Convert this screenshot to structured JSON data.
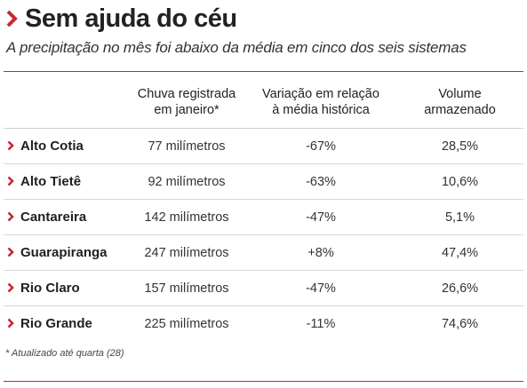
{
  "title": "Sem ajuda do céu",
  "subtitle": "A precipitação no mês foi abaixo da média em cinco dos seis sistemas",
  "accent_color": "#c7282e",
  "chart_data": {
    "type": "table",
    "columns": [
      "",
      "Chuva registrada em janeiro*",
      "Variação em relação à média histórica",
      "Volume armazenado"
    ],
    "rows": [
      {
        "sistema": "Alto Cotia",
        "chuva": "77 milímetros",
        "variacao": "-67%",
        "volume": "28,5%"
      },
      {
        "sistema": "Alto Tietê",
        "chuva": "92 milímetros",
        "variacao": "-63%",
        "volume": "10,6%"
      },
      {
        "sistema": "Cantareira",
        "chuva": "142 milímetros",
        "variacao": "-47%",
        "volume": "5,1%"
      },
      {
        "sistema": "Guarapiranga",
        "chuva": "247 milímetros",
        "variacao": "+8%",
        "volume": "47,4%"
      },
      {
        "sistema": "Rio Claro",
        "chuva": "157 milímetros",
        "variacao": "-47%",
        "volume": "26,6%"
      },
      {
        "sistema": "Rio Grande",
        "chuva": "225 milímetros",
        "variacao": "-11%",
        "volume": "74,6%"
      }
    ]
  },
  "footnote": "* Atualizado até quarta (28)"
}
